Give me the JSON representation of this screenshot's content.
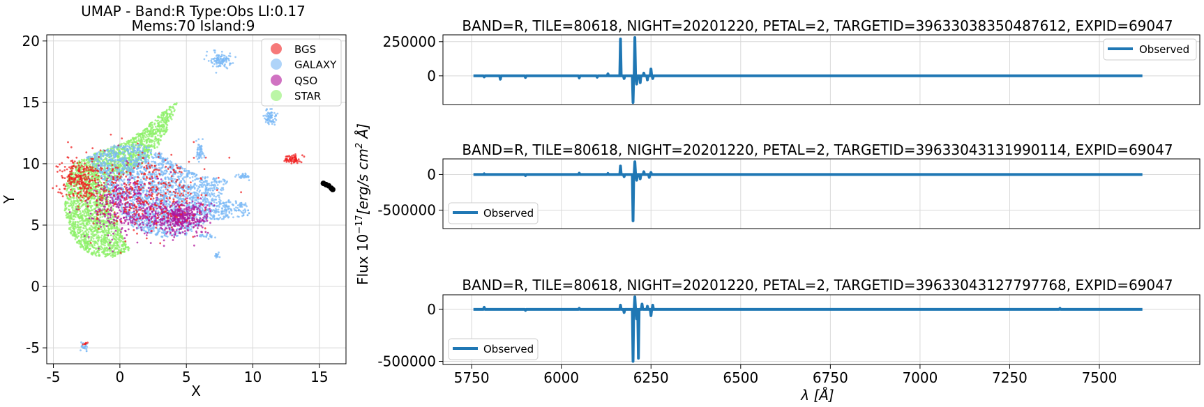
{
  "colors": {
    "BGS": "#f02020",
    "GALAXY": "#7ab8f5",
    "QSO": "#b0149a",
    "STAR": "#8ef06a",
    "black": "#000000",
    "line": "#1f77b4",
    "grid": "#d8d8d8"
  },
  "chart_data": [
    {
      "type": "scatter",
      "title": "UMAP  -  Band:R Type:Obs Ll:0.17",
      "subtitle": "Mems:70 Island:9",
      "xlabel": "X",
      "ylabel": "Y",
      "xlim": [
        -5.5,
        17
      ],
      "ylim": [
        -6.3,
        20.5
      ],
      "xticks": [
        "-5",
        "0",
        "5",
        "10",
        "15"
      ],
      "xtick_values": [
        -5,
        0,
        5,
        10,
        15
      ],
      "yticks": [
        "-5",
        "0",
        "5",
        "10",
        "15",
        "20"
      ],
      "ytick_values": [
        -5,
        0,
        5,
        10,
        15,
        20
      ],
      "grid": true,
      "legend_position": "top-right",
      "legend": [
        "BGS",
        "GALAXY",
        "QSO",
        "STAR"
      ],
      "clusters": [
        {
          "series": "STAR",
          "shape": "poly",
          "points": [
            [
              -4.0,
              8.5
            ],
            [
              -3.5,
              10.0
            ],
            [
              -2.0,
              10.8
            ],
            [
              0.5,
              11.8
            ],
            [
              2.0,
              13.0
            ],
            [
              3.5,
              14.5
            ],
            [
              4.3,
              15.0
            ],
            [
              3.8,
              13.2
            ],
            [
              2.8,
              11.3
            ],
            [
              2.0,
              10.2
            ],
            [
              0.8,
              9.4
            ],
            [
              -0.5,
              8.6
            ],
            [
              -0.8,
              7.2
            ],
            [
              -0.2,
              5.5
            ],
            [
              0.2,
              4.0
            ],
            [
              0.8,
              3.0
            ],
            [
              -0.5,
              2.4
            ],
            [
              -2.0,
              2.5
            ],
            [
              -3.0,
              3.2
            ],
            [
              -3.8,
              4.5
            ],
            [
              -4.2,
              6.5
            ]
          ],
          "count": 2600
        },
        {
          "series": "GALAXY",
          "shape": "poly",
          "points": [
            [
              -2.5,
              10.5
            ],
            [
              -0.5,
              11.5
            ],
            [
              1.5,
              11.6
            ],
            [
              3.0,
              11.0
            ],
            [
              4.2,
              10.0
            ],
            [
              6.0,
              9.0
            ],
            [
              8.2,
              8.7
            ],
            [
              7.5,
              7.2
            ],
            [
              9.5,
              6.8
            ],
            [
              9.8,
              5.8
            ],
            [
              8.5,
              5.6
            ],
            [
              6.5,
              5.3
            ],
            [
              5.0,
              4.2
            ],
            [
              3.0,
              4.0
            ],
            [
              1.0,
              4.8
            ],
            [
              0.0,
              6.0
            ],
            [
              -0.8,
              7.5
            ],
            [
              -1.5,
              9.2
            ]
          ],
          "count": 2200
        },
        {
          "series": "QSO",
          "shape": "ellipse",
          "cx": 4.5,
          "cy": 5.6,
          "rx": 2.0,
          "ry": 1.2,
          "count": 420
        },
        {
          "series": "QSO",
          "shape": "ellipse",
          "cx": 0.5,
          "cy": 6.5,
          "rx": 2.6,
          "ry": 2.4,
          "count": 380
        },
        {
          "series": "BGS",
          "shape": "ellipse",
          "cx": -3.0,
          "cy": 8.8,
          "rx": 1.4,
          "ry": 1.6,
          "count": 260
        },
        {
          "series": "BGS",
          "shape": "ellipse",
          "cx": 2.0,
          "cy": 7.5,
          "rx": 4.0,
          "ry": 2.8,
          "count": 350
        },
        {
          "series": "BGS",
          "shape": "ellipse",
          "cx": 13.0,
          "cy": 10.4,
          "rx": 0.5,
          "ry": 0.3,
          "count": 70
        },
        {
          "series": "GALAXY",
          "shape": "ellipse",
          "cx": 7.6,
          "cy": 18.5,
          "rx": 0.7,
          "ry": 0.6,
          "count": 110
        },
        {
          "series": "GALAXY",
          "shape": "ellipse",
          "cx": 11.3,
          "cy": 13.8,
          "rx": 0.4,
          "ry": 0.6,
          "count": 70
        },
        {
          "series": "GALAXY",
          "shape": "ellipse",
          "cx": 6.0,
          "cy": 11.0,
          "rx": 0.3,
          "ry": 0.7,
          "count": 50
        },
        {
          "series": "GALAXY",
          "shape": "ellipse",
          "cx": 9.3,
          "cy": 9.0,
          "rx": 0.4,
          "ry": 0.2,
          "count": 30
        },
        {
          "series": "GALAXY",
          "shape": "ellipse",
          "cx": 6.6,
          "cy": 4.1,
          "rx": 0.5,
          "ry": 0.2,
          "count": 20
        },
        {
          "series": "GALAXY",
          "shape": "ellipse",
          "cx": 7.3,
          "cy": 2.5,
          "rx": 0.2,
          "ry": 0.2,
          "count": 15
        },
        {
          "series": "GALAXY",
          "shape": "ellipse",
          "cx": -2.7,
          "cy": -4.9,
          "rx": 0.3,
          "ry": 0.3,
          "count": 25
        },
        {
          "series": "BGS",
          "shape": "ellipse",
          "cx": -2.6,
          "cy": -4.7,
          "rx": 0.2,
          "ry": 0.1,
          "count": 8
        }
      ],
      "members_line": {
        "series": "black",
        "points": [
          [
            15.3,
            8.4
          ],
          [
            15.5,
            8.3
          ],
          [
            15.7,
            8.2
          ],
          [
            15.9,
            8.0
          ],
          [
            16.0,
            7.9
          ]
        ]
      }
    },
    {
      "type": "line",
      "title": "BAND=R, TILE=80618, NIGHT=20201220, PETAL=2, TARGETID=39633038350487612, EXPID=69047",
      "xlim": [
        5670,
        7780
      ],
      "ylim": [
        -210000,
        300000
      ],
      "yticks": [
        "250000",
        "0"
      ],
      "ytick_values": [
        250000,
        0
      ],
      "grid": true,
      "legend_position": "top-right",
      "series": [
        {
          "name": "Observed",
          "spikes": [
            [
              5785,
              -8000
            ],
            [
              5830,
              -25000
            ],
            [
              5900,
              -12000
            ],
            [
              6050,
              -15000
            ],
            [
              6100,
              -10000
            ],
            [
              6130,
              15000
            ],
            [
              6165,
              270000
            ],
            [
              6175,
              -20000
            ],
            [
              6200,
              -195000
            ],
            [
              6205,
              280000
            ],
            [
              6210,
              -60000
            ],
            [
              6220,
              -50000
            ],
            [
              6230,
              20000
            ],
            [
              6240,
              -30000
            ],
            [
              6250,
              50000
            ],
            [
              6255,
              -20000
            ]
          ]
        }
      ]
    },
    {
      "type": "line",
      "title": "BAND=R, TILE=80618, NIGHT=20201220, PETAL=2, TARGETID=39633043131990114, EXPID=69047",
      "xlim": [
        5670,
        7780
      ],
      "ylim": [
        -760000,
        220000
      ],
      "yticks": [
        "0",
        "-500000"
      ],
      "ytick_values": [
        0,
        -500000
      ],
      "grid": true,
      "legend_position": "bottom-left",
      "series": [
        {
          "name": "Observed",
          "spikes": [
            [
              5785,
              10000
            ],
            [
              5900,
              -15000
            ],
            [
              6050,
              20000
            ],
            [
              6130,
              15000
            ],
            [
              6165,
              120000
            ],
            [
              6175,
              -30000
            ],
            [
              6200,
              -650000
            ],
            [
              6205,
              180000
            ],
            [
              6210,
              -80000
            ],
            [
              6220,
              -60000
            ],
            [
              6230,
              40000
            ],
            [
              6245,
              -40000
            ],
            [
              6250,
              30000
            ]
          ]
        }
      ]
    },
    {
      "type": "line",
      "title": "BAND=R, TILE=80618, NIGHT=20201220, PETAL=2, TARGETID=39633043127797768, EXPID=69047",
      "xlabel": "λ [Å]",
      "xlim": [
        5670,
        7780
      ],
      "ylim": [
        -530000,
        140000
      ],
      "xticks": [
        "5750",
        "6000",
        "6250",
        "6500",
        "6750",
        "7000",
        "7250",
        "7500"
      ],
      "xtick_values": [
        5750,
        6000,
        6250,
        6500,
        6750,
        7000,
        7250,
        7500
      ],
      "yticks": [
        "0",
        "-500000"
      ],
      "ytick_values": [
        0,
        -500000
      ],
      "grid": true,
      "legend_position": "bottom-left",
      "series": [
        {
          "name": "Observed",
          "spikes": [
            [
              5785,
              20000
            ],
            [
              5900,
              -10000
            ],
            [
              6050,
              10000
            ],
            [
              6165,
              40000
            ],
            [
              6175,
              -30000
            ],
            [
              6200,
              -500000
            ],
            [
              6205,
              120000
            ],
            [
              6210,
              -90000
            ],
            [
              6215,
              -470000
            ],
            [
              6225,
              50000
            ],
            [
              6240,
              30000
            ],
            [
              6250,
              -60000
            ],
            [
              6255,
              40000
            ],
            [
              7390,
              10000
            ]
          ]
        }
      ]
    }
  ],
  "shared_ylabel": "Flux 10^-17 [erg/s cm² Å]",
  "shared_ylabel_parts": {
    "prefix": "Flux 10",
    "exp": "−17",
    "units": "[erg/s cm",
    "sq": "2",
    "tail": " Å]"
  }
}
